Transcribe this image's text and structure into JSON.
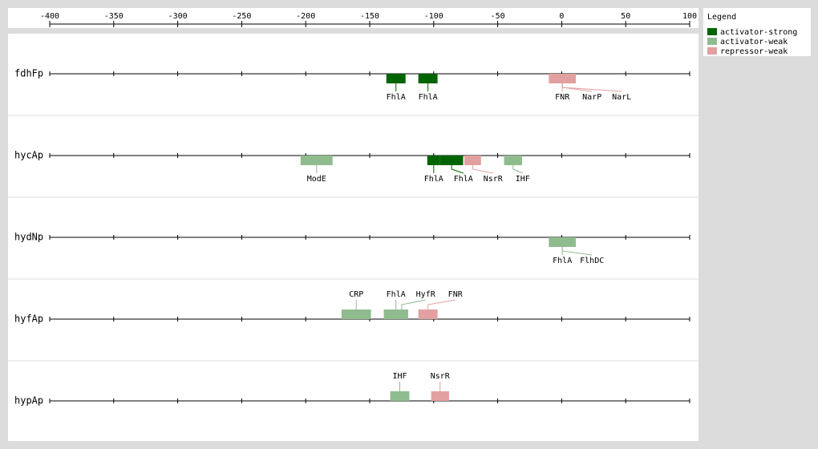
{
  "chart_data": {
    "type": "site-map",
    "xlim": [
      -400,
      100
    ],
    "xticks": [
      -400,
      -350,
      -300,
      -250,
      -200,
      -150,
      -100,
      -50,
      0,
      50,
      100
    ],
    "legend_title": "Legend",
    "legend": [
      {
        "name": "activator-strong",
        "color": "#006400"
      },
      {
        "name": "activator-weak",
        "color": "#8fbc8f"
      },
      {
        "name": "repressor-weak",
        "color": "#e3a0a0"
      }
    ],
    "promoters": [
      {
        "name": "fdhFp",
        "labels": "below",
        "sites": [
          {
            "label": "FhlA",
            "kind": "activator-strong",
            "start": -137,
            "end": -122
          },
          {
            "label": "FhlA",
            "kind": "activator-strong",
            "start": -112,
            "end": -97
          },
          {
            "label": "FNR",
            "kind": "repressor-weak",
            "start": -10,
            "end": 11
          },
          {
            "label": "NarP",
            "kind": "repressor-weak",
            "start": -10,
            "end": 11
          },
          {
            "label": "NarL",
            "kind": "repressor-weak",
            "start": -10,
            "end": 11
          }
        ]
      },
      {
        "name": "hycAp",
        "labels": "below",
        "sites": [
          {
            "label": "ModE",
            "kind": "activator-weak",
            "start": -204,
            "end": -179
          },
          {
            "label": "FhlA",
            "kind": "activator-strong",
            "start": -105,
            "end": -95
          },
          {
            "label": "FhlA",
            "kind": "activator-strong",
            "start": -95,
            "end": -77
          },
          {
            "label": "NsrR",
            "kind": "repressor-weak",
            "start": -76,
            "end": -63
          },
          {
            "label": "IHF",
            "kind": "activator-weak",
            "start": -45,
            "end": -31
          }
        ]
      },
      {
        "name": "hydNp",
        "labels": "below",
        "sites": [
          {
            "label": "FhlA",
            "kind": "activator-weak",
            "start": -10,
            "end": 11
          },
          {
            "label": "FlhDC",
            "kind": "activator-weak",
            "start": -10,
            "end": 11
          }
        ]
      },
      {
        "name": "hyfAp",
        "labels": "above",
        "sites": [
          {
            "label": "CRP",
            "kind": "activator-weak",
            "start": -172,
            "end": -149
          },
          {
            "label": "FhlA",
            "kind": "activator-weak",
            "start": -139,
            "end": -120
          },
          {
            "label": "HyfR",
            "kind": "activator-weak",
            "start": -130,
            "end": -120
          },
          {
            "label": "FNR",
            "kind": "repressor-weak",
            "start": -112,
            "end": -97
          }
        ]
      },
      {
        "name": "hypAp",
        "labels": "above",
        "sites": [
          {
            "label": "IHF",
            "kind": "activator-weak",
            "start": -134,
            "end": -119
          },
          {
            "label": "NsrR",
            "kind": "repressor-weak",
            "start": -102,
            "end": -88
          }
        ]
      }
    ]
  }
}
